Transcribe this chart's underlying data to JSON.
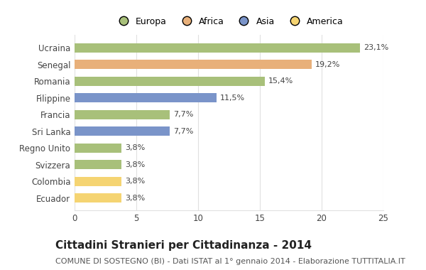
{
  "categories": [
    "Ucraina",
    "Senegal",
    "Romania",
    "Filippine",
    "Francia",
    "Sri Lanka",
    "Regno Unito",
    "Svizzera",
    "Colombia",
    "Ecuador"
  ],
  "values": [
    23.1,
    19.2,
    15.4,
    11.5,
    7.7,
    7.7,
    3.8,
    3.8,
    3.8,
    3.8
  ],
  "labels": [
    "23,1%",
    "19,2%",
    "15,4%",
    "11,5%",
    "7,7%",
    "7,7%",
    "3,8%",
    "3,8%",
    "3,8%",
    "3,8%"
  ],
  "colors": [
    "#a8c07a",
    "#e8b07a",
    "#a8c07a",
    "#7a94c9",
    "#a8c07a",
    "#7a94c9",
    "#a8c07a",
    "#a8c07a",
    "#f5d472",
    "#f5d472"
  ],
  "legend_labels": [
    "Europa",
    "Africa",
    "Asia",
    "America"
  ],
  "legend_colors": [
    "#a8c07a",
    "#e8b07a",
    "#7a94c9",
    "#f5d472"
  ],
  "title": "Cittadini Stranieri per Cittadinanza - 2014",
  "subtitle": "COMUNE DI SOSTEGNO (BI) - Dati ISTAT al 1° gennaio 2014 - Elaborazione TUTTITALIA.IT",
  "xlim": [
    0,
    25
  ],
  "xticks": [
    0,
    5,
    10,
    15,
    20,
    25
  ],
  "background_color": "#ffffff",
  "grid_color": "#e0e0e0",
  "title_fontsize": 11,
  "subtitle_fontsize": 8,
  "label_fontsize": 8,
  "tick_fontsize": 8.5,
  "legend_fontsize": 9
}
